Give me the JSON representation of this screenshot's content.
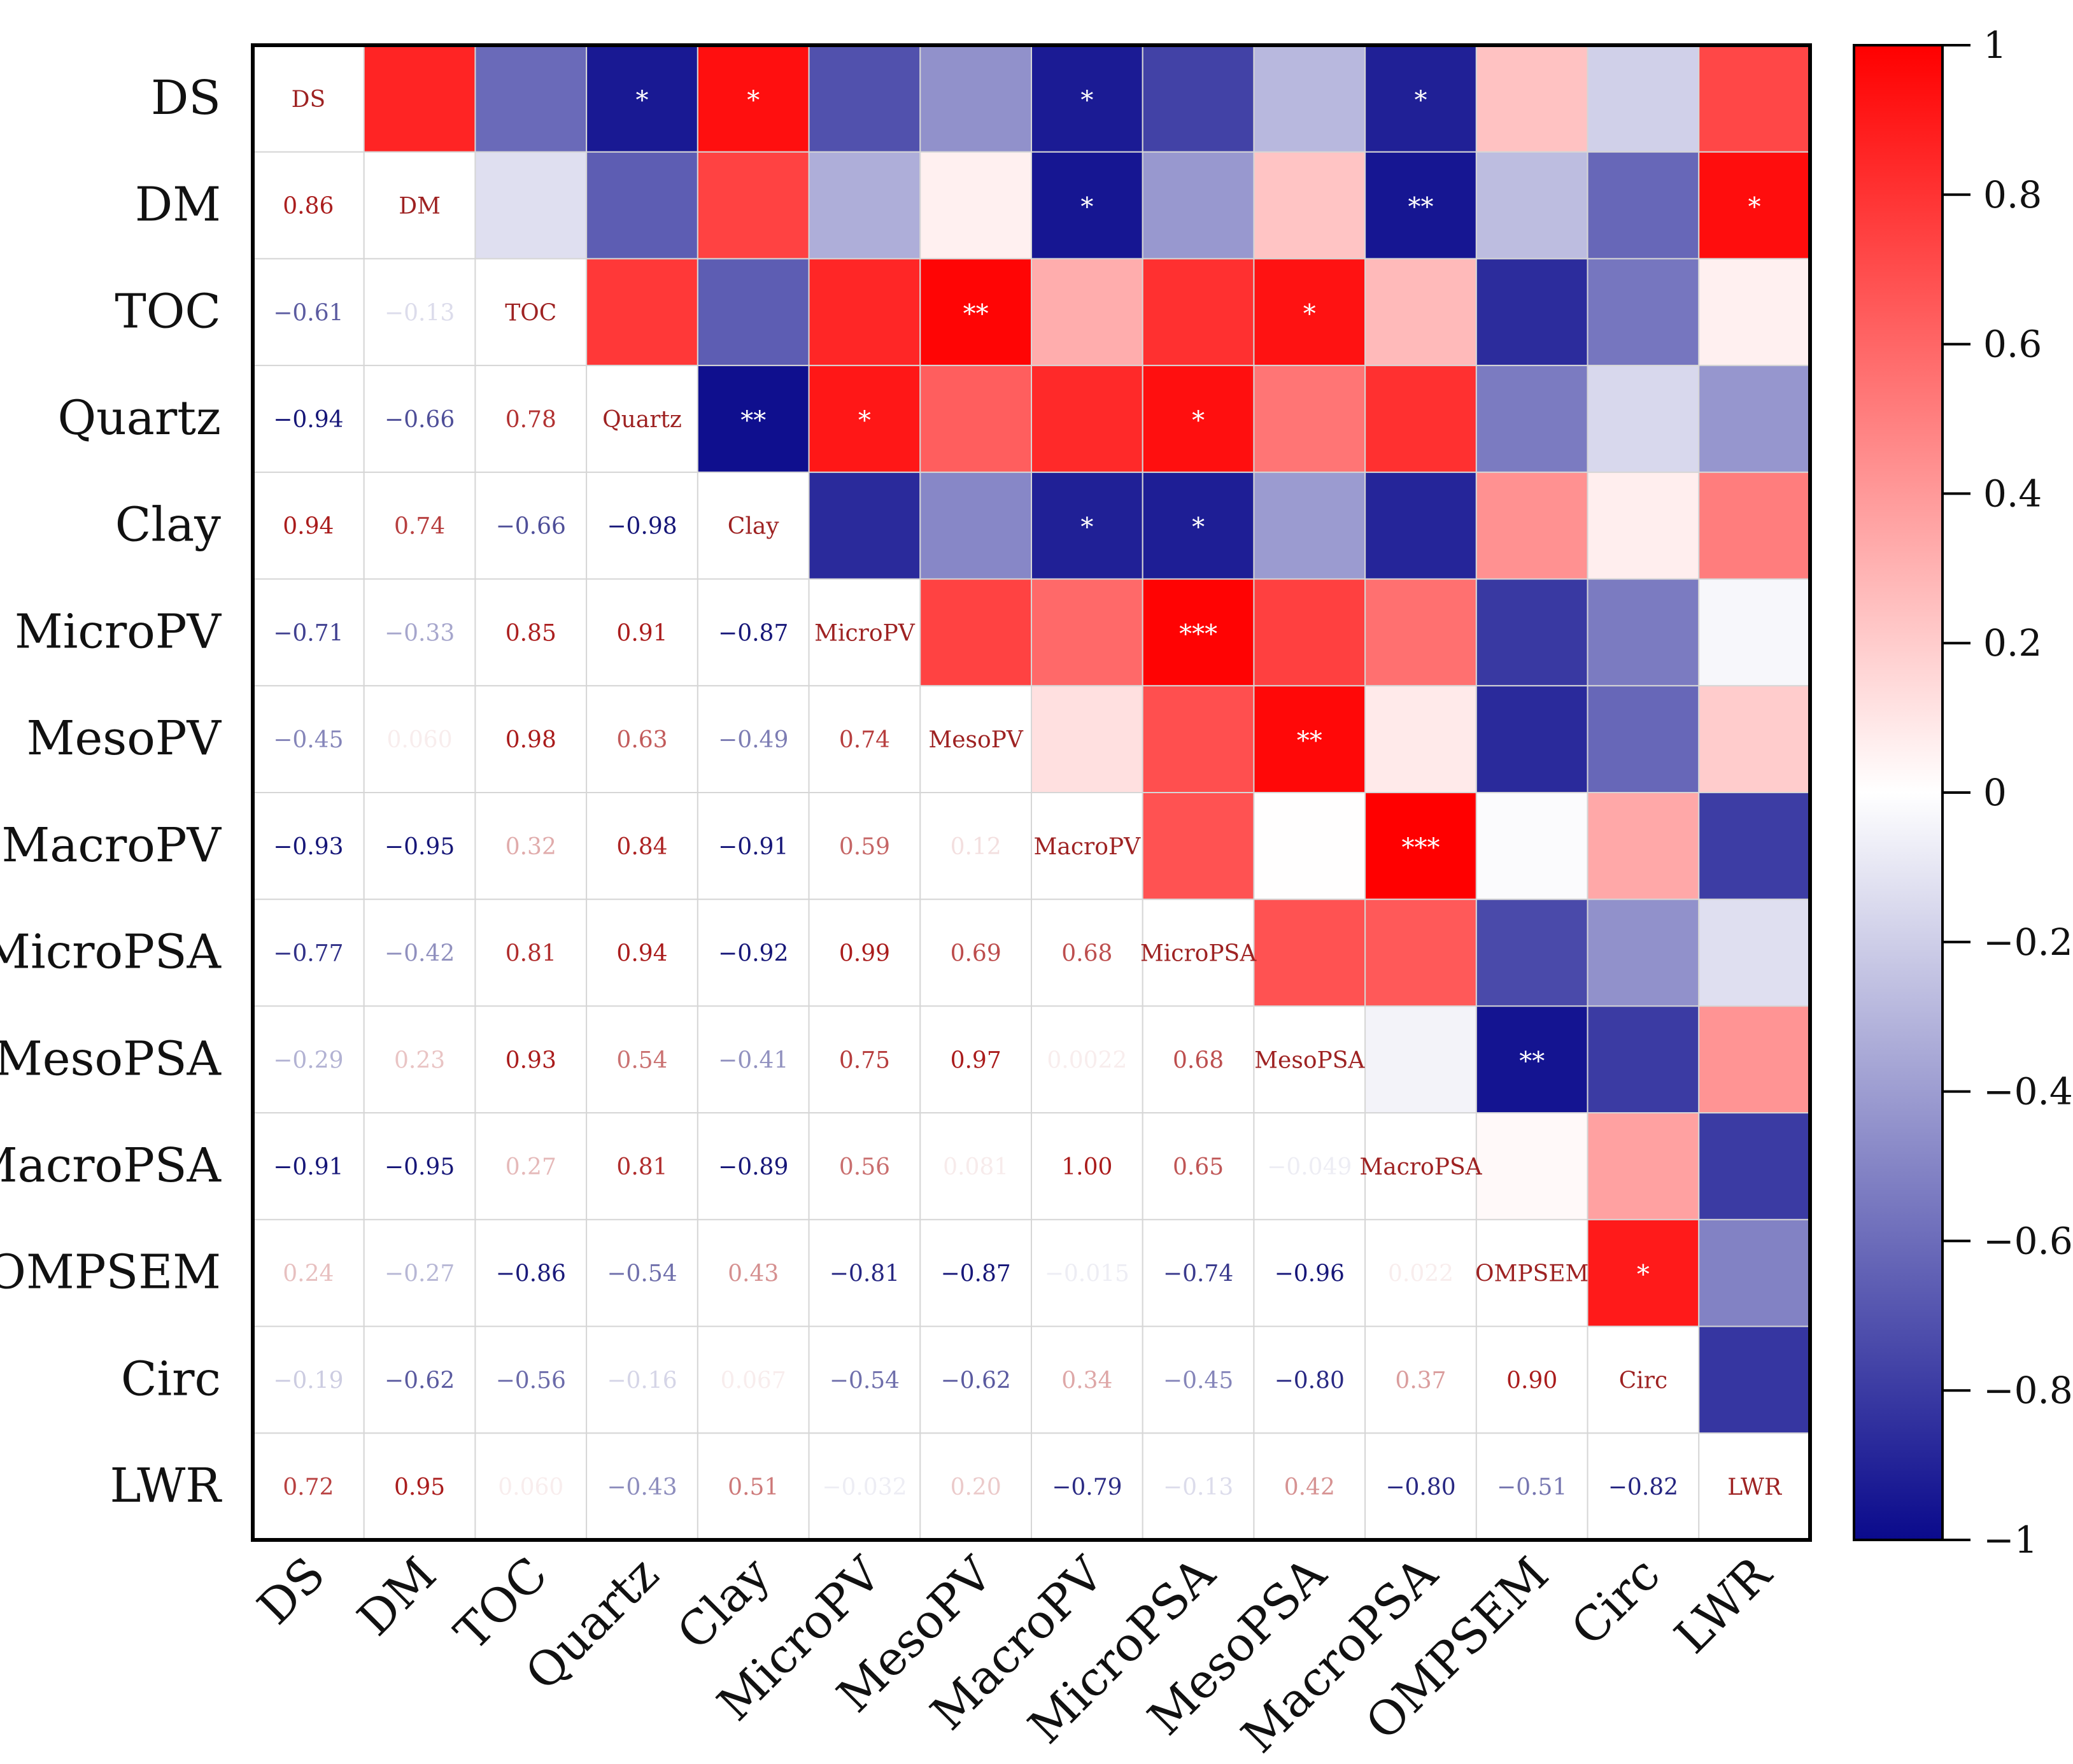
{
  "chart_data": {
    "type": "heatmap",
    "variables": [
      "DS",
      "DM",
      "TOC",
      "Quartz",
      "Clay",
      "MicroPV",
      "MesoPV",
      "MacroPV",
      "MicroPSA",
      "MesoPSA",
      "MacroPSA",
      "OMPSEM",
      "Circ",
      "LWR"
    ],
    "lower_triangle_text": [
      [
        null,
        null,
        null,
        null,
        null,
        null,
        null,
        null,
        null,
        null,
        null,
        null,
        null,
        null
      ],
      [
        "0.86",
        null,
        null,
        null,
        null,
        null,
        null,
        null,
        null,
        null,
        null,
        null,
        null,
        null
      ],
      [
        "−0.61",
        "−0.13",
        null,
        null,
        null,
        null,
        null,
        null,
        null,
        null,
        null,
        null,
        null,
        null
      ],
      [
        "−0.94",
        "−0.66",
        "0.78",
        null,
        null,
        null,
        null,
        null,
        null,
        null,
        null,
        null,
        null,
        null
      ],
      [
        "0.94",
        "0.74",
        "−0.66",
        "−0.98",
        null,
        null,
        null,
        null,
        null,
        null,
        null,
        null,
        null,
        null
      ],
      [
        "−0.71",
        "−0.33",
        "0.85",
        "0.91",
        "−0.87",
        null,
        null,
        null,
        null,
        null,
        null,
        null,
        null,
        null
      ],
      [
        "−0.45",
        "0.060",
        "0.98",
        "0.63",
        "−0.49",
        "0.74",
        null,
        null,
        null,
        null,
        null,
        null,
        null,
        null
      ],
      [
        "−0.93",
        "−0.95",
        "0.32",
        "0.84",
        "−0.91",
        "0.59",
        "0.12",
        null,
        null,
        null,
        null,
        null,
        null,
        null
      ],
      [
        "−0.77",
        "−0.42",
        "0.81",
        "0.94",
        "−0.92",
        "0.99",
        "0.69",
        "0.68",
        null,
        null,
        null,
        null,
        null,
        null
      ],
      [
        "−0.29",
        "0.23",
        "0.93",
        "0.54",
        "−0.41",
        "0.75",
        "0.97",
        "0.0022",
        "0.68",
        null,
        null,
        null,
        null,
        null
      ],
      [
        "−0.91",
        "−0.95",
        "0.27",
        "0.81",
        "−0.89",
        "0.56",
        "0.081",
        "1.00",
        "0.65",
        "−0.049",
        null,
        null,
        null,
        null
      ],
      [
        "0.24",
        "−0.27",
        "−0.86",
        "−0.54",
        "0.43",
        "−0.81",
        "−0.87",
        "−0.015",
        "−0.74",
        "−0.96",
        "0.022",
        null,
        null,
        null
      ],
      [
        "−0.19",
        "−0.62",
        "−0.56",
        "−0.16",
        "0.067",
        "−0.54",
        "−0.62",
        "0.34",
        "−0.45",
        "−0.80",
        "0.37",
        "0.90",
        null,
        null
      ],
      [
        "0.72",
        "0.95",
        "0.060",
        "−0.43",
        "0.51",
        "−0.032",
        "0.20",
        "−0.79",
        "−0.13",
        "0.42",
        "−0.80",
        "−0.51",
        "−0.82",
        null
      ]
    ],
    "significance": [
      {
        "row": 0,
        "col": 3,
        "stars": "*"
      },
      {
        "row": 0,
        "col": 4,
        "stars": "*"
      },
      {
        "row": 0,
        "col": 7,
        "stars": "*"
      },
      {
        "row": 0,
        "col": 10,
        "stars": "*"
      },
      {
        "row": 1,
        "col": 7,
        "stars": "*"
      },
      {
        "row": 1,
        "col": 10,
        "stars": "**"
      },
      {
        "row": 1,
        "col": 13,
        "stars": "*"
      },
      {
        "row": 2,
        "col": 6,
        "stars": "**"
      },
      {
        "row": 2,
        "col": 9,
        "stars": "*"
      },
      {
        "row": 3,
        "col": 4,
        "stars": "**"
      },
      {
        "row": 3,
        "col": 5,
        "stars": "*"
      },
      {
        "row": 3,
        "col": 8,
        "stars": "*"
      },
      {
        "row": 4,
        "col": 7,
        "stars": "*"
      },
      {
        "row": 4,
        "col": 8,
        "stars": "*"
      },
      {
        "row": 5,
        "col": 8,
        "stars": "***"
      },
      {
        "row": 6,
        "col": 9,
        "stars": "**"
      },
      {
        "row": 7,
        "col": 10,
        "stars": "***"
      },
      {
        "row": 9,
        "col": 11,
        "stars": "**"
      },
      {
        "row": 11,
        "col": 12,
        "stars": "*"
      }
    ],
    "color_scale": {
      "min": -1,
      "max": 1,
      "negative_color": "#0a0a8c",
      "zero_color": "#ffffff",
      "positive_color": "#ff0000",
      "ticks": [
        "1",
        "0.8",
        "0.6",
        "0.4",
        "0.2",
        "0",
        "−0.2",
        "−0.4",
        "−0.6",
        "−0.8",
        "−1"
      ]
    },
    "grid": true,
    "legend": "right"
  }
}
